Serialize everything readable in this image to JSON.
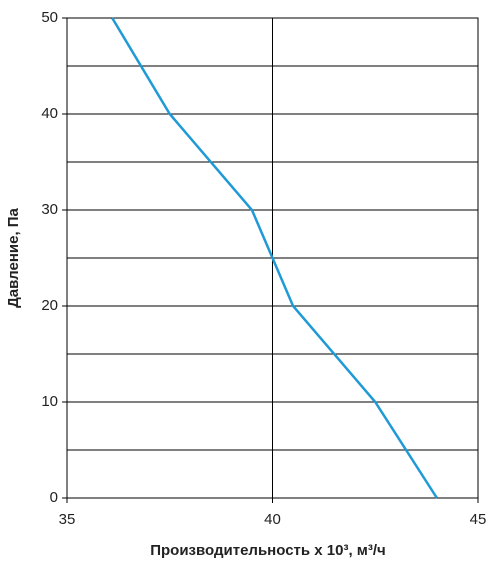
{
  "chart_data": {
    "type": "line",
    "x_label": "Производительность х 10³, м³/ч",
    "y_label": "Давление, Па",
    "series": [
      {
        "name": "Давление",
        "color": "#1f9ad6",
        "x": [
          36.1,
          37.5,
          39.5,
          40.0,
          40.5,
          42.5,
          44.0
        ],
        "values": [
          50,
          40,
          30,
          25,
          20,
          10,
          0
        ]
      }
    ],
    "xlim": [
      35,
      45
    ],
    "xticks": [
      35,
      40,
      45
    ],
    "ylim": [
      0,
      50
    ],
    "yticks": [
      0,
      10,
      20,
      30,
      40,
      50
    ],
    "y_minor_grid": [
      5,
      15,
      25,
      35,
      45
    ],
    "grid": true
  }
}
